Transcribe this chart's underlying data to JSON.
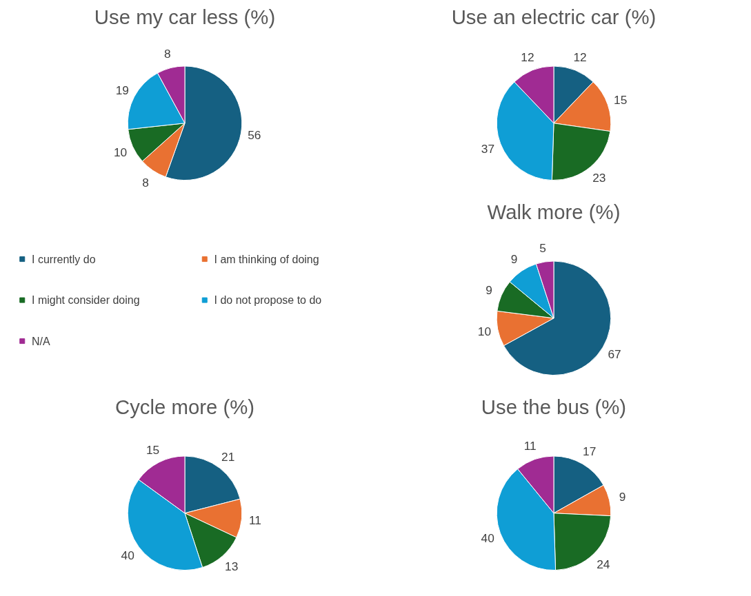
{
  "chart_data": [
    {
      "type": "pie",
      "title": "Use my car less (%)",
      "categories": [
        "I currently do",
        "I am thinking of doing",
        "I might consider doing",
        "I do not propose to do",
        "N/A"
      ],
      "values": [
        56,
        8,
        10,
        19,
        8
      ],
      "colors": [
        "#156082",
        "#e97132",
        "#196b24",
        "#0f9ed5",
        "#a02b93"
      ],
      "data_labels": true,
      "legend": "bottom"
    },
    {
      "type": "pie",
      "title": "Use an electric car (%)",
      "values": [
        12,
        15,
        23,
        37,
        12
      ],
      "colors": [
        "#156082",
        "#e97132",
        "#196b24",
        "#0f9ed5",
        "#a02b93"
      ],
      "data_labels": true
    },
    {
      "type": "pie",
      "title": "Walk more (%)",
      "values": [
        67,
        10,
        9,
        9,
        5
      ],
      "colors": [
        "#156082",
        "#e97132",
        "#196b24",
        "#0f9ed5",
        "#a02b93"
      ],
      "data_labels": true
    },
    {
      "type": "pie",
      "title": "Cycle more (%)",
      "values": [
        21,
        11,
        13,
        40,
        15
      ],
      "colors": [
        "#156082",
        "#e97132",
        "#196b24",
        "#0f9ed5",
        "#a02b93"
      ],
      "data_labels": true
    },
    {
      "type": "pie",
      "title": "Use the bus (%)",
      "values": [
        17,
        9,
        24,
        40,
        11
      ],
      "colors": [
        "#156082",
        "#e97132",
        "#196b24",
        "#0f9ed5",
        "#a02b93"
      ],
      "data_labels": true
    }
  ]
}
